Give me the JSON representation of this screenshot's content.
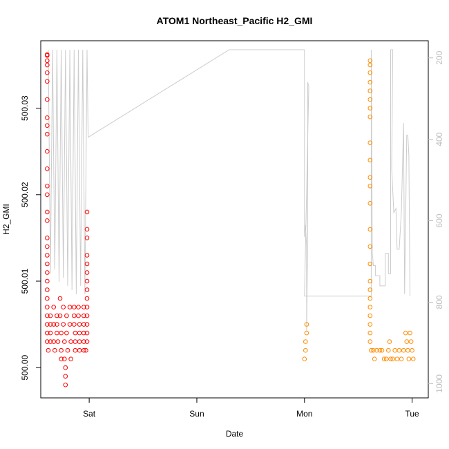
{
  "chart_data": {
    "type": "scatter",
    "title": "ATOM1 Northeast_Pacific H2_GMI",
    "xlabel": "Date",
    "ylabel": "H2_GMI",
    "x_ticks": [
      {
        "label": "Sat",
        "day": 1
      },
      {
        "label": "Sun",
        "day": 2
      },
      {
        "label": "Mon",
        "day": 3
      },
      {
        "label": "Tue",
        "day": 4
      }
    ],
    "xlim_days": [
      0.55,
      4.15
    ],
    "y_ticks": [
      {
        "label": "500.00",
        "value": 500.0
      },
      {
        "label": "500.01",
        "value": 500.01
      },
      {
        "label": "500.02",
        "value": 500.02
      },
      {
        "label": "500.03",
        "value": 500.03
      }
    ],
    "ylim": [
      499.9965,
      500.0378
    ],
    "y2_ticks": [
      {
        "label": "200",
        "value": 200
      },
      {
        "label": "400",
        "value": 400
      },
      {
        "label": "600",
        "value": 600
      },
      {
        "label": "800",
        "value": 800
      },
      {
        "label": "1000",
        "value": 1000
      }
    ],
    "y2lim_top_to_bottom": [
      158,
      1035
    ],
    "series": [
      {
        "color": "#ff0000",
        "points": [
          [
            0.61,
            500.0362
          ],
          [
            0.61,
            500.0361
          ],
          [
            0.61,
            500.0355
          ],
          [
            0.61,
            500.035
          ],
          [
            0.61,
            500.0341
          ],
          [
            0.61,
            500.0331
          ],
          [
            0.61,
            500.031
          ],
          [
            0.61,
            500.0289
          ],
          [
            0.61,
            500.028
          ],
          [
            0.61,
            500.027
          ],
          [
            0.61,
            500.025
          ],
          [
            0.61,
            500.023
          ],
          [
            0.61,
            500.021
          ],
          [
            0.61,
            500.02
          ],
          [
            0.61,
            500.018
          ],
          [
            0.61,
            500.017
          ],
          [
            0.61,
            500.015
          ],
          [
            0.61,
            500.014
          ],
          [
            0.61,
            500.013
          ],
          [
            0.61,
            500.012
          ],
          [
            0.61,
            500.011
          ],
          [
            0.61,
            500.01
          ],
          [
            0.61,
            500.009
          ],
          [
            0.61,
            500.008
          ],
          [
            0.61,
            500.007
          ],
          [
            0.61,
            500.006
          ],
          [
            0.61,
            500.005
          ],
          [
            0.61,
            500.004
          ],
          [
            0.61,
            500.003
          ],
          [
            0.62,
            500.002
          ],
          [
            0.64,
            500.006
          ],
          [
            0.64,
            500.005
          ],
          [
            0.64,
            500.004
          ],
          [
            0.64,
            500.003
          ],
          [
            0.67,
            500.007
          ],
          [
            0.67,
            500.005
          ],
          [
            0.67,
            500.003
          ],
          [
            0.68,
            500.002
          ],
          [
            0.7,
            500.006
          ],
          [
            0.7,
            500.005
          ],
          [
            0.7,
            500.004
          ],
          [
            0.71,
            500.003
          ],
          [
            0.73,
            500.008
          ],
          [
            0.73,
            500.006
          ],
          [
            0.74,
            500.004
          ],
          [
            0.74,
            500.002
          ],
          [
            0.74,
            500.001
          ],
          [
            0.76,
            500.007
          ],
          [
            0.76,
            500.005
          ],
          [
            0.77,
            500.003
          ],
          [
            0.77,
            500.001
          ],
          [
            0.78,
            500.0
          ],
          [
            0.78,
            499.999
          ],
          [
            0.78,
            499.998
          ],
          [
            0.79,
            500.006
          ],
          [
            0.79,
            500.004
          ],
          [
            0.8,
            500.002
          ],
          [
            0.82,
            500.007
          ],
          [
            0.82,
            500.005
          ],
          [
            0.83,
            500.003
          ],
          [
            0.83,
            500.001
          ],
          [
            0.86,
            500.007
          ],
          [
            0.86,
            500.006
          ],
          [
            0.86,
            500.005
          ],
          [
            0.87,
            500.004
          ],
          [
            0.87,
            500.003
          ],
          [
            0.87,
            500.002
          ],
          [
            0.9,
            500.007
          ],
          [
            0.9,
            500.006
          ],
          [
            0.91,
            500.005
          ],
          [
            0.91,
            500.004
          ],
          [
            0.91,
            500.003
          ],
          [
            0.91,
            500.002
          ],
          [
            0.95,
            500.007
          ],
          [
            0.95,
            500.006
          ],
          [
            0.95,
            500.005
          ],
          [
            0.95,
            500.004
          ],
          [
            0.95,
            500.003
          ],
          [
            0.95,
            500.002
          ],
          [
            0.98,
            500.018
          ],
          [
            0.98,
            500.016
          ],
          [
            0.98,
            500.015
          ],
          [
            0.98,
            500.013
          ],
          [
            0.98,
            500.012
          ],
          [
            0.98,
            500.011
          ],
          [
            0.98,
            500.01
          ],
          [
            0.98,
            500.009
          ],
          [
            0.98,
            500.008
          ],
          [
            0.98,
            500.007
          ],
          [
            0.98,
            500.006
          ],
          [
            0.98,
            500.005
          ],
          [
            0.98,
            500.004
          ],
          [
            0.98,
            500.003
          ],
          [
            0.97,
            500.002
          ]
        ]
      },
      {
        "color": "#ff8c00",
        "points": [
          [
            3.0,
            500.001
          ],
          [
            3.01,
            500.002
          ],
          [
            3.01,
            500.003
          ],
          [
            3.02,
            500.004
          ],
          [
            3.02,
            500.005
          ],
          [
            3.61,
            500.0355
          ],
          [
            3.61,
            500.035
          ],
          [
            3.61,
            500.0341
          ],
          [
            3.61,
            500.033
          ],
          [
            3.61,
            500.032
          ],
          [
            3.61,
            500.031
          ],
          [
            3.61,
            500.03
          ],
          [
            3.61,
            500.029
          ],
          [
            3.61,
            500.026
          ],
          [
            3.61,
            500.024
          ],
          [
            3.61,
            500.022
          ],
          [
            3.61,
            500.021
          ],
          [
            3.61,
            500.019
          ],
          [
            3.61,
            500.016
          ],
          [
            3.61,
            500.014
          ],
          [
            3.61,
            500.012
          ],
          [
            3.61,
            500.01
          ],
          [
            3.61,
            500.009
          ],
          [
            3.61,
            500.008
          ],
          [
            3.61,
            500.007
          ],
          [
            3.61,
            500.006
          ],
          [
            3.61,
            500.005
          ],
          [
            3.61,
            500.004
          ],
          [
            3.61,
            500.003
          ],
          [
            3.62,
            500.002
          ],
          [
            3.64,
            500.002
          ],
          [
            3.65,
            500.001
          ],
          [
            3.67,
            500.002
          ],
          [
            3.7,
            500.002
          ],
          [
            3.72,
            500.002
          ],
          [
            3.74,
            500.001
          ],
          [
            3.76,
            500.001
          ],
          [
            3.78,
            500.002
          ],
          [
            3.79,
            500.003
          ],
          [
            3.8,
            500.001
          ],
          [
            3.82,
            500.001
          ],
          [
            3.84,
            500.002
          ],
          [
            3.86,
            500.001
          ],
          [
            3.88,
            500.002
          ],
          [
            3.9,
            500.001
          ],
          [
            3.92,
            500.002
          ],
          [
            3.94,
            500.004
          ],
          [
            3.95,
            500.003
          ],
          [
            3.96,
            500.002
          ],
          [
            3.97,
            500.001
          ],
          [
            3.98,
            500.004
          ],
          [
            3.99,
            500.003
          ],
          [
            4.0,
            500.002
          ],
          [
            4.01,
            500.001
          ]
        ]
      },
      {
        "color": "#cccccc",
        "axis": "right",
        "points": [
          [
            0.62,
            180
          ],
          [
            0.64,
            730
          ],
          [
            0.66,
            180
          ],
          [
            0.68,
            720
          ],
          [
            0.7,
            180
          ],
          [
            0.72,
            750
          ],
          [
            0.74,
            180
          ],
          [
            0.76,
            740
          ],
          [
            0.78,
            180
          ],
          [
            0.8,
            760
          ],
          [
            0.82,
            180
          ],
          [
            0.84,
            770
          ],
          [
            0.86,
            180
          ],
          [
            0.88,
            780
          ],
          [
            0.9,
            180
          ],
          [
            0.92,
            760
          ],
          [
            0.94,
            180
          ],
          [
            0.96,
            780
          ],
          [
            0.98,
            180
          ],
          [
            0.99,
            395
          ],
          [
            2.3,
            180
          ],
          [
            3.0,
            180
          ],
          [
            3.0,
            640
          ],
          [
            3.01,
            610
          ],
          [
            3.02,
            665
          ],
          [
            3.02,
            870
          ],
          [
            3.03,
            620
          ],
          [
            3.03,
            260
          ],
          [
            3.04,
            270
          ],
          [
            3.0,
            785
          ],
          [
            3.62,
            785
          ],
          [
            3.62,
            180
          ],
          [
            3.63,
            680
          ],
          [
            3.64,
            710
          ],
          [
            3.66,
            710
          ],
          [
            3.66,
            735
          ],
          [
            3.7,
            735
          ],
          [
            3.7,
            760
          ],
          [
            3.75,
            760
          ],
          [
            3.75,
            680
          ],
          [
            3.78,
            680
          ],
          [
            3.78,
            730
          ],
          [
            3.8,
            730
          ],
          [
            3.8,
            180
          ],
          [
            3.82,
            180
          ],
          [
            3.81,
            470
          ],
          [
            3.83,
            580
          ],
          [
            3.85,
            570
          ],
          [
            3.86,
            670
          ],
          [
            3.88,
            670
          ],
          [
            3.9,
            580
          ],
          [
            3.92,
            360
          ],
          [
            3.93,
            780
          ],
          [
            3.95,
            390
          ],
          [
            3.96,
            390
          ],
          [
            3.97,
            440
          ],
          [
            3.98,
            780
          ],
          [
            3.98,
            785
          ]
        ]
      }
    ]
  }
}
